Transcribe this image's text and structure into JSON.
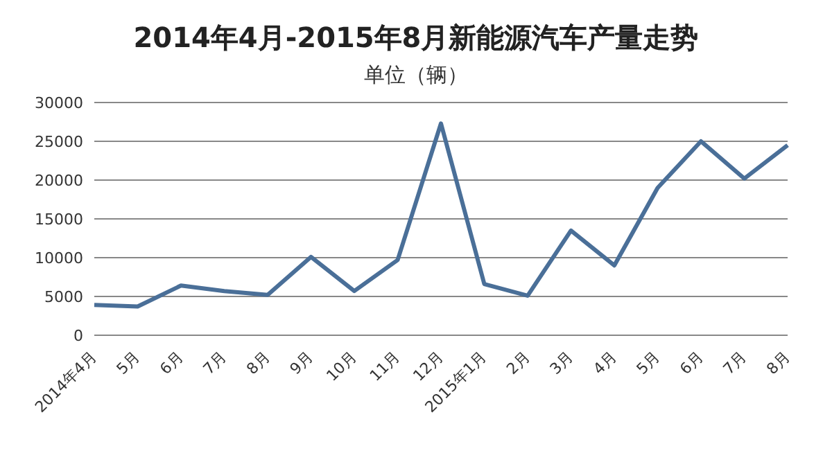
{
  "chart_data": {
    "type": "line",
    "title": "2014年4月-2015年8月新能源汽车产量走势",
    "subtitle": "单位（辆）",
    "categories": [
      "2014年4月",
      "5月",
      "6月",
      "7月",
      "8月",
      "9月",
      "10月",
      "11月",
      "12月",
      "2015年1月",
      "2月",
      "3月",
      "4月",
      "5月",
      "6月",
      "7月",
      "8月"
    ],
    "series": [
      {
        "color": "#4a6f98",
        "values": [
          3900,
          3700,
          6400,
          5700,
          5200,
          10100,
          5700,
          9700,
          27300,
          6600,
          5100,
          13500,
          9000,
          19000,
          25000,
          20200,
          24500
        ]
      }
    ],
    "ylim": [
      0,
      30000
    ],
    "yticks": [
      0,
      5000,
      10000,
      15000,
      20000,
      25000,
      30000
    ],
    "grid": "y",
    "legend": false,
    "marker": "none",
    "line_style": "solid"
  }
}
